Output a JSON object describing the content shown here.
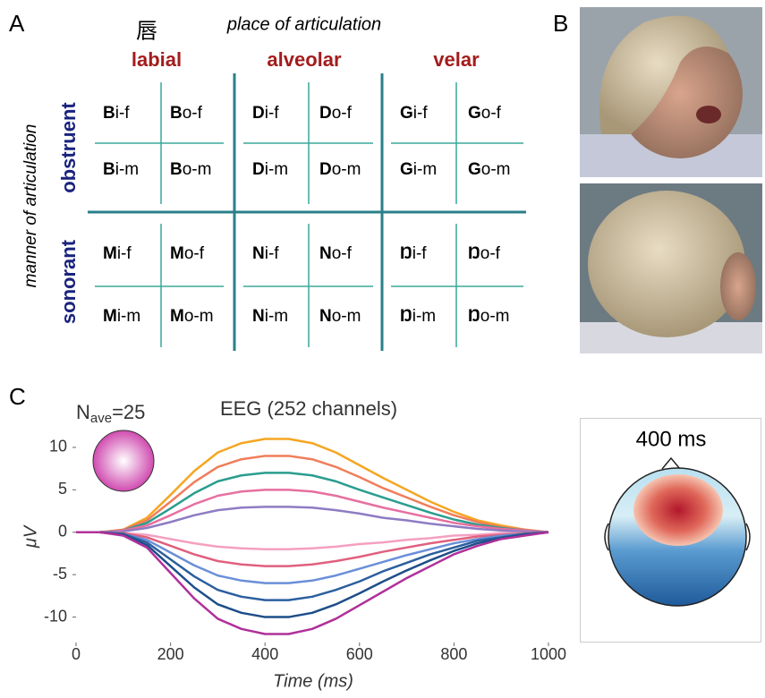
{
  "panel_labels": [
    "A",
    "B",
    "C"
  ],
  "table": {
    "top_mark": "唇",
    "header": "place of articulation",
    "row_header": "manner of articulation",
    "columns": [
      "labial",
      "alveolar",
      "velar"
    ],
    "rows": [
      "obstruent",
      "sonorant"
    ],
    "cells": [
      [
        {
          "onset": "B",
          "rest": "i-f"
        },
        {
          "onset": "B",
          "rest": "o-f"
        },
        {
          "onset": "D",
          "rest": "i-f"
        },
        {
          "onset": "D",
          "rest": "o-f"
        },
        {
          "onset": "G",
          "rest": "i-f"
        },
        {
          "onset": "G",
          "rest": "o-f"
        }
      ],
      [
        {
          "onset": "B",
          "rest": "i-m"
        },
        {
          "onset": "B",
          "rest": "o-m"
        },
        {
          "onset": "D",
          "rest": "i-m"
        },
        {
          "onset": "D",
          "rest": "o-m"
        },
        {
          "onset": "G",
          "rest": "i-m"
        },
        {
          "onset": "G",
          "rest": "o-m"
        }
      ],
      [
        {
          "onset": "M",
          "rest": "i-f"
        },
        {
          "onset": "M",
          "rest": "o-f"
        },
        {
          "onset": "N",
          "rest": "i-f"
        },
        {
          "onset": "N",
          "rest": "o-f"
        },
        {
          "onset": "Ŋ",
          "rest": "i-f"
        },
        {
          "onset": "Ŋ",
          "rest": "o-f"
        }
      ],
      [
        {
          "onset": "M",
          "rest": "i-m"
        },
        {
          "onset": "M",
          "rest": "o-m"
        },
        {
          "onset": "N",
          "rest": "i-m"
        },
        {
          "onset": "N",
          "rest": "o-m"
        },
        {
          "onset": "Ŋ",
          "rest": "i-m"
        },
        {
          "onset": "Ŋ",
          "rest": "o-m"
        }
      ]
    ]
  },
  "topomap": {
    "label": "400 ms"
  },
  "chart_data": {
    "type": "line",
    "title": "EEG (252 channels)",
    "annotation": {
      "base": "N",
      "sub": "ave",
      "rest": "=25"
    },
    "x_label": "Time (ms)",
    "y_label": "μV",
    "xlim": [
      0,
      1000
    ],
    "ylim": [
      -13,
      12
    ],
    "xticks": [
      0,
      200,
      400,
      600,
      800,
      1000
    ],
    "yticks": [
      -10,
      -5,
      0,
      5,
      10
    ],
    "x": [
      0,
      50,
      100,
      150,
      200,
      250,
      300,
      350,
      400,
      450,
      500,
      550,
      600,
      650,
      700,
      750,
      800,
      850,
      900,
      950,
      1000
    ],
    "series": [
      {
        "color": "#f5a623",
        "values": [
          0,
          0,
          0.3,
          1.7,
          4.4,
          7.2,
          9.4,
          10.5,
          11,
          11,
          10.5,
          9.4,
          7.9,
          6.4,
          5,
          3.6,
          2.4,
          1.4,
          0.8,
          0.3,
          0
        ]
      },
      {
        "color": "#f07d5a",
        "values": [
          0,
          0,
          0.3,
          1.4,
          3.6,
          5.9,
          7.7,
          8.6,
          9,
          9,
          8.6,
          7.7,
          6.5,
          5.2,
          4.1,
          3,
          2,
          1.2,
          0.6,
          0.3,
          0
        ]
      },
      {
        "color": "#2a9d8f",
        "values": [
          0,
          0,
          0.2,
          1.1,
          2.8,
          4.6,
          6,
          6.7,
          7,
          7,
          6.7,
          6,
          5,
          4.1,
          3.2,
          2.3,
          1.5,
          0.9,
          0.5,
          0.2,
          0
        ]
      },
      {
        "color": "#e76fa0",
        "values": [
          0,
          0,
          0.2,
          0.8,
          2,
          3.3,
          4.3,
          4.8,
          5,
          5,
          4.8,
          4.3,
          3.6,
          2.9,
          2.3,
          1.7,
          1.1,
          0.7,
          0.4,
          0.2,
          0
        ]
      },
      {
        "color": "#8e7cc3",
        "values": [
          0,
          0,
          0.1,
          0.5,
          1.2,
          2,
          2.6,
          2.9,
          3,
          3,
          2.9,
          2.6,
          2.2,
          1.7,
          1.4,
          1,
          0.7,
          0.4,
          0.2,
          0.1,
          0
        ]
      },
      {
        "color": "#f4a0c0",
        "values": [
          0,
          0,
          -0.1,
          -0.3,
          -0.8,
          -1.3,
          -1.7,
          -1.9,
          -2,
          -2,
          -1.9,
          -1.7,
          -1.4,
          -1.2,
          -0.9,
          -0.7,
          -0.4,
          -0.3,
          -0.1,
          -0.1,
          0
        ]
      },
      {
        "color": "#e0607e",
        "values": [
          0,
          0,
          -0.1,
          -0.6,
          -1.6,
          -2.6,
          -3.4,
          -3.8,
          -4,
          -4,
          -3.8,
          -3.4,
          -2.9,
          -2.3,
          -1.8,
          -1.3,
          -0.9,
          -0.5,
          -0.3,
          -0.1,
          0
        ]
      },
      {
        "color": "#6a8fd8",
        "values": [
          0,
          0,
          -0.2,
          -0.9,
          -2.4,
          -3.9,
          -5.1,
          -5.7,
          -6,
          -6,
          -5.7,
          -5.1,
          -4.3,
          -3.5,
          -2.7,
          -2,
          -1.3,
          -0.8,
          -0.4,
          -0.2,
          0
        ]
      },
      {
        "color": "#2b5f9e",
        "values": [
          0,
          0,
          -0.2,
          -1.2,
          -3.2,
          -5.2,
          -6.8,
          -7.6,
          -8,
          -8,
          -7.6,
          -6.8,
          -5.8,
          -4.6,
          -3.6,
          -2.6,
          -1.8,
          -1,
          -0.6,
          -0.2,
          0
        ]
      },
      {
        "color": "#1d4e89",
        "values": [
          0,
          0,
          -0.3,
          -1.5,
          -4,
          -6.5,
          -8.5,
          -9.5,
          -10,
          -10,
          -9.5,
          -8.5,
          -7.2,
          -5.8,
          -4.5,
          -3.3,
          -2.2,
          -1.3,
          -0.7,
          -0.3,
          0
        ]
      },
      {
        "color": "#b0309a",
        "values": [
          0,
          0,
          -0.4,
          -1.8,
          -4.8,
          -7.8,
          -10.2,
          -11.4,
          -12,
          -12,
          -11.4,
          -10.2,
          -8.6,
          -7,
          -5.4,
          -4,
          -2.6,
          -1.6,
          -0.8,
          -0.4,
          0
        ]
      }
    ]
  }
}
